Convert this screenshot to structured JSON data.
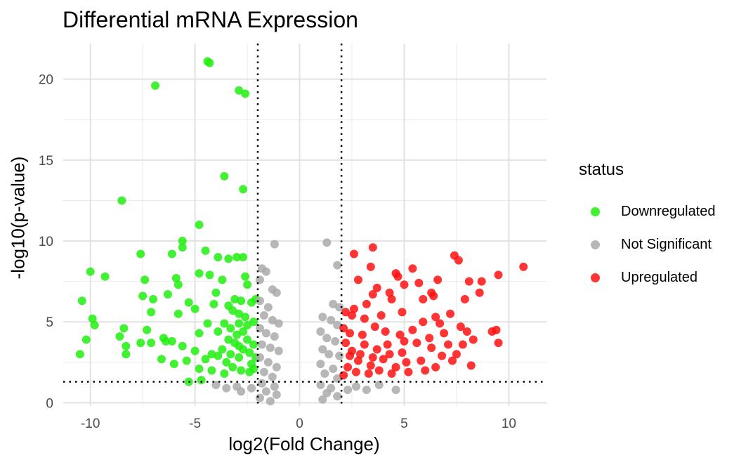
{
  "chart_data": {
    "type": "scatter",
    "title": "Differential mRNA Expression",
    "xlabel": "log2(Fold Change)",
    "ylabel": "-log10(p-value)",
    "xlim": [
      -11.3,
      11.8
    ],
    "ylim": [
      -0.2,
      22.2
    ],
    "x_ticks": [
      -10,
      -5,
      0,
      5,
      10
    ],
    "x_tick_labels": [
      "-10",
      "-5",
      "0",
      "5",
      "10"
    ],
    "y_ticks": [
      0,
      5,
      10,
      15,
      20
    ],
    "y_tick_labels": [
      "0",
      "5",
      "10",
      "15",
      "20"
    ],
    "grid": true,
    "legend_placement": "right",
    "legend_title": "status",
    "reference_lines": {
      "vertical": [
        -2,
        2
      ],
      "horizontal": [
        1.3
      ],
      "style": "dotted"
    },
    "series": [
      {
        "name": "Downregulated",
        "color": "#22ee11",
        "points": [
          [
            -4.4,
            21.1
          ],
          [
            -4.3,
            21.0
          ],
          [
            -6.9,
            19.6
          ],
          [
            -2.9,
            19.3
          ],
          [
            -2.6,
            19.1
          ],
          [
            -3.6,
            14.0
          ],
          [
            -2.7,
            13.2
          ],
          [
            -8.5,
            12.5
          ],
          [
            -4.8,
            11.0
          ],
          [
            -5.6,
            10.0
          ],
          [
            -5.6,
            9.6
          ],
          [
            -6.1,
            9.2
          ],
          [
            -7.6,
            9.2
          ],
          [
            -4.5,
            9.4
          ],
          [
            -3.9,
            9.0
          ],
          [
            -3.4,
            8.9
          ],
          [
            -3.0,
            9.0
          ],
          [
            -2.7,
            9.0
          ],
          [
            -10.0,
            8.1
          ],
          [
            -9.3,
            7.8
          ],
          [
            -7.4,
            7.6
          ],
          [
            -5.9,
            7.7
          ],
          [
            -4.8,
            8.0
          ],
          [
            -4.3,
            7.9
          ],
          [
            -3.7,
            7.6
          ],
          [
            -2.6,
            7.8
          ],
          [
            -5.8,
            7.3
          ],
          [
            -2.5,
            7.3
          ],
          [
            -7.5,
            6.6
          ],
          [
            -7.0,
            6.4
          ],
          [
            -6.3,
            6.7
          ],
          [
            -4.0,
            6.8
          ],
          [
            -3.1,
            6.4
          ],
          [
            -2.8,
            6.3
          ],
          [
            -10.4,
            6.3
          ],
          [
            -5.3,
            6.2
          ],
          [
            -4.1,
            6.1
          ],
          [
            -3.4,
            6.0
          ],
          [
            -2.3,
            6.2
          ],
          [
            -2.1,
            6.4
          ],
          [
            -9.9,
            5.2
          ],
          [
            -9.8,
            4.8
          ],
          [
            -7.1,
            5.6
          ],
          [
            -5.8,
            5.5
          ],
          [
            -5.0,
            5.8
          ],
          [
            -3.2,
            5.7
          ],
          [
            -2.9,
            5.5
          ],
          [
            -2.6,
            5.3
          ],
          [
            -10.2,
            3.9
          ],
          [
            -8.4,
            4.6
          ],
          [
            -8.6,
            4.1
          ],
          [
            -7.3,
            4.5
          ],
          [
            -6.5,
            4.0
          ],
          [
            -6.1,
            3.8
          ],
          [
            -5.6,
            3.5
          ],
          [
            -4.8,
            4.3
          ],
          [
            -4.4,
            4.9
          ],
          [
            -3.9,
            4.4
          ],
          [
            -3.6,
            4.9
          ],
          [
            -3.3,
            4.6
          ],
          [
            -2.9,
            4.9
          ],
          [
            -2.5,
            4.8
          ],
          [
            -2.2,
            5.0
          ],
          [
            -10.5,
            3.0
          ],
          [
            -8.3,
            3.5
          ],
          [
            -8.3,
            3.0
          ],
          [
            -7.6,
            3.7
          ],
          [
            -7.1,
            3.7
          ],
          [
            -6.6,
            2.7
          ],
          [
            -6.4,
            3.8
          ],
          [
            -6.0,
            2.4
          ],
          [
            -5.4,
            2.6
          ],
          [
            -5.0,
            3.2
          ],
          [
            -4.5,
            2.7
          ],
          [
            -4.2,
            3.0
          ],
          [
            -3.9,
            2.9
          ],
          [
            -3.7,
            3.3
          ],
          [
            -3.5,
            2.5
          ],
          [
            -3.3,
            3.0
          ],
          [
            -3.1,
            3.7
          ],
          [
            -2.9,
            2.8
          ],
          [
            -2.7,
            3.3
          ],
          [
            -2.5,
            3.9
          ],
          [
            -2.3,
            2.4
          ],
          [
            -2.2,
            3.6
          ],
          [
            -2.1,
            2.8
          ],
          [
            -5.3,
            1.3
          ],
          [
            -4.7,
            1.4
          ],
          [
            -4.8,
            2.1
          ],
          [
            -4.2,
            2.0
          ],
          [
            -3.6,
            1.8
          ],
          [
            -3.2,
            2.2
          ],
          [
            -2.8,
            2.0
          ],
          [
            -2.4,
            1.9
          ],
          [
            -2.2,
            2.1
          ],
          [
            -3.0,
            4.2
          ],
          [
            -2.7,
            4.4
          ],
          [
            -3.4,
            3.9
          ],
          [
            -2.4,
            3.1
          ],
          [
            -2.9,
            3.5
          ]
        ]
      },
      {
        "name": "Not Significant",
        "color": "#aaaaaa",
        "points": [
          [
            -1.2,
            9.8
          ],
          [
            1.3,
            9.9
          ],
          [
            1.8,
            8.5
          ],
          [
            -1.8,
            8.3
          ],
          [
            -1.6,
            8.1
          ],
          [
            -1.9,
            7.6
          ],
          [
            -1.3,
            7.0
          ],
          [
            -1.1,
            6.8
          ],
          [
            1.6,
            6.1
          ],
          [
            1.9,
            5.9
          ],
          [
            -1.9,
            6.3
          ],
          [
            -1.5,
            5.9
          ],
          [
            -1.7,
            5.4
          ],
          [
            -1.3,
            5.1
          ],
          [
            -1.0,
            4.9
          ],
          [
            1.1,
            5.3
          ],
          [
            1.5,
            5.1
          ],
          [
            1.8,
            4.8
          ],
          [
            -1.9,
            4.6
          ],
          [
            -1.6,
            4.3
          ],
          [
            -1.2,
            4.1
          ],
          [
            1.0,
            4.4
          ],
          [
            1.3,
            4.0
          ],
          [
            1.7,
            3.8
          ],
          [
            -1.8,
            3.6
          ],
          [
            -1.4,
            3.4
          ],
          [
            -1.0,
            3.2
          ],
          [
            1.1,
            3.3
          ],
          [
            1.4,
            3.0
          ],
          [
            1.9,
            2.9
          ],
          [
            -1.9,
            2.8
          ],
          [
            -1.5,
            2.5
          ],
          [
            -1.1,
            2.2
          ],
          [
            1.0,
            2.4
          ],
          [
            1.6,
            2.1
          ],
          [
            -1.7,
            1.9
          ],
          [
            -1.3,
            1.6
          ],
          [
            1.2,
            1.8
          ],
          [
            1.8,
            1.5
          ],
          [
            -1.8,
            1.2
          ],
          [
            -1.2,
            1.0
          ],
          [
            1.0,
            1.1
          ],
          [
            1.5,
            0.9
          ],
          [
            -1.6,
            0.7
          ],
          [
            -1.1,
            0.5
          ],
          [
            1.3,
            0.6
          ],
          [
            1.8,
            0.4
          ],
          [
            -1.9,
            0.3
          ],
          [
            1.1,
            0.2
          ],
          [
            -1.4,
            0.1
          ],
          [
            -3.5,
            0.9
          ],
          [
            -2.8,
            0.7
          ],
          [
            -2.3,
            0.9
          ],
          [
            2.3,
            0.8
          ],
          [
            2.7,
            1.0
          ],
          [
            3.2,
            0.8
          ],
          [
            4.6,
            0.8
          ],
          [
            -4.0,
            1.1
          ],
          [
            3.8,
            1.1
          ],
          [
            -3.0,
            1.0
          ]
        ]
      },
      {
        "name": "Upregulated",
        "color": "#ff1111",
        "points": [
          [
            10.7,
            8.4
          ],
          [
            9.5,
            7.9
          ],
          [
            8.7,
            7.5
          ],
          [
            8.1,
            7.5
          ],
          [
            7.4,
            9.1
          ],
          [
            7.6,
            8.8
          ],
          [
            6.6,
            7.6
          ],
          [
            5.4,
            8.3
          ],
          [
            4.7,
            7.8
          ],
          [
            4.6,
            8.0
          ],
          [
            3.5,
            9.6
          ],
          [
            2.6,
            9.2
          ],
          [
            3.4,
            8.4
          ],
          [
            2.8,
            7.6
          ],
          [
            3.7,
            7.1
          ],
          [
            5.0,
            7.3
          ],
          [
            5.7,
            7.4
          ],
          [
            4.3,
            6.8
          ],
          [
            6.3,
            6.8
          ],
          [
            6.4,
            6.6
          ],
          [
            8.6,
            6.8
          ],
          [
            7.9,
            6.4
          ],
          [
            5.9,
            6.4
          ],
          [
            4.4,
            6.4
          ],
          [
            3.5,
            6.7
          ],
          [
            3.2,
            6.1
          ],
          [
            2.6,
            5.8
          ],
          [
            7.2,
            5.5
          ],
          [
            6.5,
            5.3
          ],
          [
            5.9,
            5.0
          ],
          [
            4.9,
            5.6
          ],
          [
            3.9,
            5.4
          ],
          [
            3.1,
            5.2
          ],
          [
            2.5,
            5.4
          ],
          [
            2.2,
            5.6
          ],
          [
            9.4,
            4.5
          ],
          [
            9.2,
            4.4
          ],
          [
            8.0,
            4.4
          ],
          [
            7.7,
            4.7
          ],
          [
            6.9,
            4.3
          ],
          [
            6.2,
            4.0
          ],
          [
            5.4,
            4.5
          ],
          [
            4.8,
            4.2
          ],
          [
            4.1,
            4.4
          ],
          [
            3.6,
            4.7
          ],
          [
            3.0,
            4.2
          ],
          [
            2.4,
            4.3
          ],
          [
            2.1,
            4.6
          ],
          [
            9.5,
            3.7
          ],
          [
            8.3,
            3.9
          ],
          [
            7.8,
            3.6
          ],
          [
            7.1,
            3.6
          ],
          [
            6.3,
            3.4
          ],
          [
            5.6,
            3.7
          ],
          [
            4.9,
            3.1
          ],
          [
            4.2,
            3.6
          ],
          [
            3.7,
            3.3
          ],
          [
            3.1,
            3.6
          ],
          [
            2.5,
            3.2
          ],
          [
            2.2,
            3.7
          ],
          [
            8.2,
            2.3
          ],
          [
            7.3,
            2.6
          ],
          [
            6.5,
            2.2
          ],
          [
            5.8,
            2.6
          ],
          [
            5.1,
            2.5
          ],
          [
            4.6,
            2.2
          ],
          [
            4.0,
            2.7
          ],
          [
            3.4,
            2.3
          ],
          [
            2.8,
            2.6
          ],
          [
            2.3,
            2.2
          ],
          [
            6.8,
            2.9
          ],
          [
            6.0,
            2.0
          ],
          [
            5.2,
            1.9
          ],
          [
            4.4,
            1.8
          ],
          [
            3.8,
            2.0
          ],
          [
            3.3,
            1.8
          ],
          [
            2.7,
            1.9
          ],
          [
            2.1,
            1.7
          ],
          [
            2.4,
            2.9
          ],
          [
            2.9,
            3.0
          ],
          [
            3.5,
            2.8
          ],
          [
            4.3,
            3.0
          ],
          [
            5.0,
            3.8
          ],
          [
            6.7,
            4.9
          ],
          [
            7.5,
            3.0
          ]
        ]
      }
    ]
  }
}
